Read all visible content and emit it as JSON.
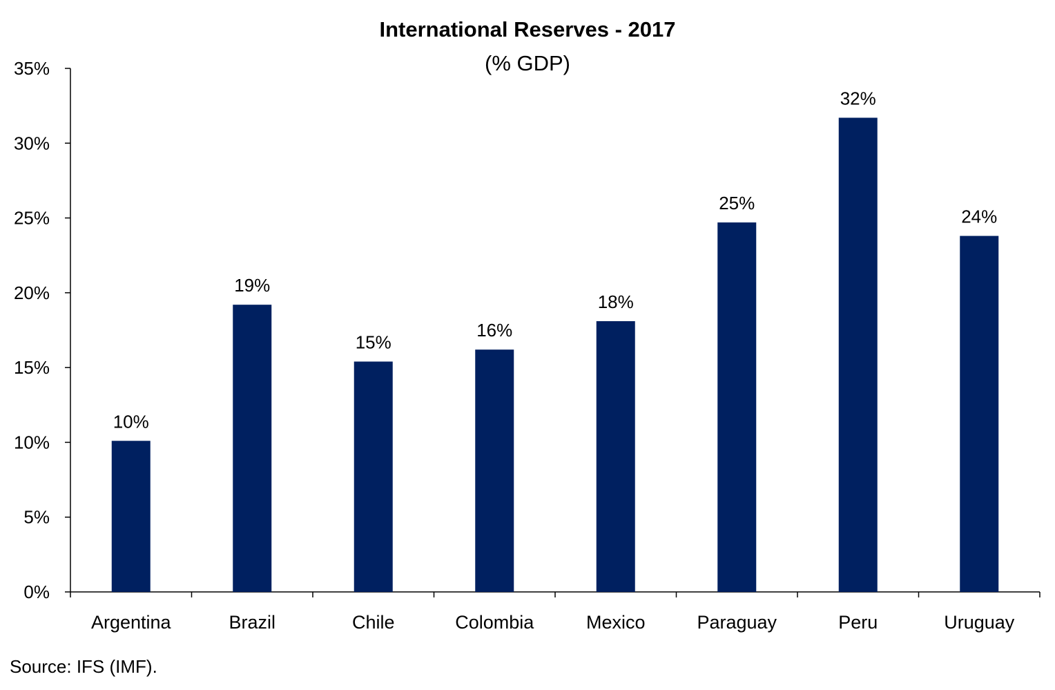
{
  "chart_data": {
    "type": "bar",
    "title": "International Reserves - 2017",
    "subtitle": "(% GDP)",
    "categories": [
      "Argentina",
      "Brazil",
      "Chile",
      "Colombia",
      "Mexico",
      "Paraguay",
      "Peru",
      "Uruguay"
    ],
    "values": [
      10.1,
      19.2,
      15.4,
      16.2,
      18.1,
      24.7,
      31.7,
      23.8
    ],
    "data_labels": [
      "10%",
      "19%",
      "15%",
      "16%",
      "18%",
      "25%",
      "32%",
      "24%"
    ],
    "ylim": [
      0,
      35
    ],
    "yticks": [
      0,
      5,
      10,
      15,
      20,
      25,
      30,
      35
    ],
    "ytick_labels": [
      "0%",
      "5%",
      "10%",
      "15%",
      "20%",
      "25%",
      "30%",
      "35%"
    ],
    "grid": false,
    "legend": "none",
    "bar_color": "#002060"
  },
  "source": "Source: IFS (IMF)."
}
